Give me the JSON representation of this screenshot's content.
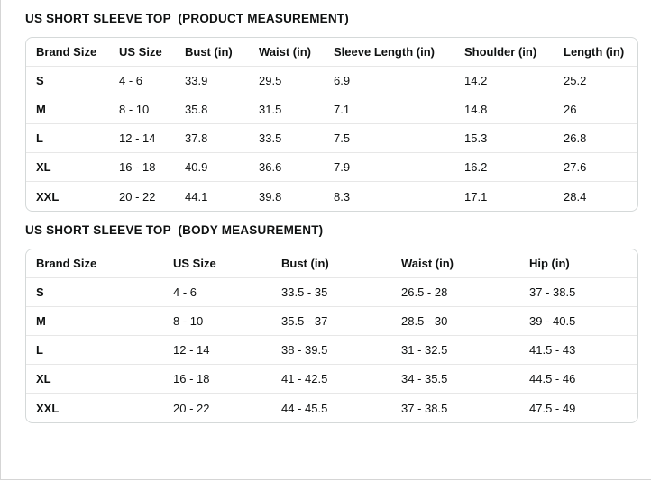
{
  "colors": {
    "text": "#0f1111",
    "table_border": "#d5d9d9",
    "row_divider": "#e7e7e7",
    "page_edge": "#d5d5d5"
  },
  "tables": [
    {
      "title": "US SHORT SLEEVE TOP  (PRODUCT MEASUREMENT)",
      "columns": [
        "Brand Size",
        "US Size",
        "Bust (in)",
        "Waist (in)",
        "Sleeve Length (in)",
        "Shoulder (in)",
        "Length (in)"
      ],
      "rows": [
        [
          "S",
          "4 - 6",
          "33.9",
          "29.5",
          "6.9",
          "14.2",
          "25.2"
        ],
        [
          "M",
          "8 - 10",
          "35.8",
          "31.5",
          "7.1",
          "14.8",
          "26"
        ],
        [
          "L",
          "12 - 14",
          "37.8",
          "33.5",
          "7.5",
          "15.3",
          "26.8"
        ],
        [
          "XL",
          "16 - 18",
          "40.9",
          "36.6",
          "7.9",
          "16.2",
          "27.6"
        ],
        [
          "XXL",
          "20 - 22",
          "44.1",
          "39.8",
          "8.3",
          "17.1",
          "28.4"
        ]
      ]
    },
    {
      "title": "US SHORT SLEEVE TOP  (BODY MEASUREMENT)",
      "columns": [
        "Brand Size",
        "US Size",
        "Bust (in)",
        "Waist (in)",
        "Hip (in)"
      ],
      "rows": [
        [
          "S",
          "4 - 6",
          "33.5 - 35",
          "26.5 - 28",
          "37 - 38.5"
        ],
        [
          "M",
          "8 - 10",
          "35.5 - 37",
          "28.5 - 30",
          "39 - 40.5"
        ],
        [
          "L",
          "12 - 14",
          "38 - 39.5",
          "31 - 32.5",
          "41.5 - 43"
        ],
        [
          "XL",
          "16 - 18",
          "41 - 42.5",
          "34 - 35.5",
          "44.5 - 46"
        ],
        [
          "XXL",
          "20 - 22",
          "44 - 45.5",
          "37 - 38.5",
          "47.5 - 49"
        ]
      ]
    }
  ]
}
